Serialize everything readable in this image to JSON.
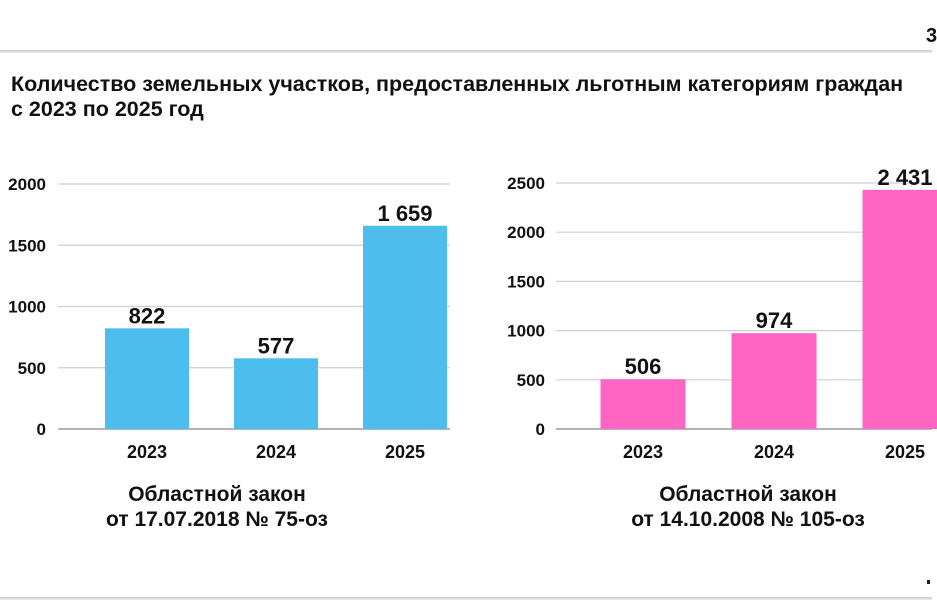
{
  "page": {
    "title": "Количество земельных участков, предоставленных льготным категориям граждан с 2023 по 2025 год",
    "page_number": "3"
  },
  "chart_data": [
    {
      "type": "bar",
      "categories": [
        "2023",
        "2024",
        "2025"
      ],
      "values": [
        822,
        577,
        1659
      ],
      "data_labels": [
        "822",
        "577",
        "1 659"
      ],
      "ylim": [
        0,
        2000
      ],
      "yticks": [
        0,
        500,
        1000,
        1500,
        2000
      ],
      "grid": true,
      "color": "#4DBDEE",
      "caption_line1": "Областной закон",
      "caption_line2": "от 17.07.2018 № 75-оз"
    },
    {
      "type": "bar",
      "categories": [
        "2023",
        "2024",
        "2025"
      ],
      "values": [
        506,
        974,
        2431
      ],
      "data_labels": [
        "506",
        "974",
        "2 431"
      ],
      "ylim": [
        0,
        2500
      ],
      "yticks": [
        0,
        500,
        1000,
        1500,
        2000,
        2500
      ],
      "grid": true,
      "color": "#FF66C4",
      "caption_line1": "Областной закон",
      "caption_line2": "от 14.10.2008 № 105-оз"
    }
  ]
}
